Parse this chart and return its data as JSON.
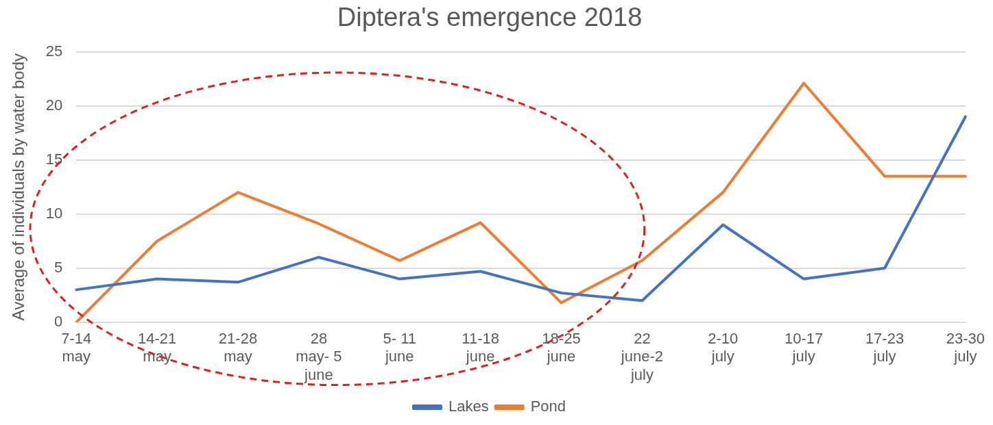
{
  "chart_data": {
    "type": "line",
    "title": "Diptera's emergence 2018",
    "ylabel": "Average of individuals by water body",
    "categories": [
      "7-14 may",
      "14-21 may",
      "21-28 may",
      "28 may- 5 june",
      "5- 11 june",
      "11-18 june",
      "18-25 june",
      "22 june-2 july",
      "2-10 july",
      "10-17 july",
      "17-23 july",
      "23-30 july"
    ],
    "series": [
      {
        "name": "Lakes",
        "color": "#4472c4",
        "values": [
          3.0,
          4.0,
          3.7,
          6.0,
          4.0,
          4.7,
          2.7,
          2.0,
          9.0,
          4.0,
          5.0,
          19.0
        ]
      },
      {
        "name": "Pond",
        "color": "#ed7d31",
        "values": [
          0,
          7.5,
          12.0,
          9.1,
          5.7,
          9.2,
          1.8,
          5.7,
          12.0,
          22.1,
          13.5,
          13.5
        ]
      }
    ],
    "ylim": [
      0,
      25
    ],
    "yticks": [
      0,
      5,
      10,
      15,
      20,
      25
    ],
    "grid": "y",
    "legend": "bottom",
    "marker": "none",
    "line_style": "solid"
  }
}
